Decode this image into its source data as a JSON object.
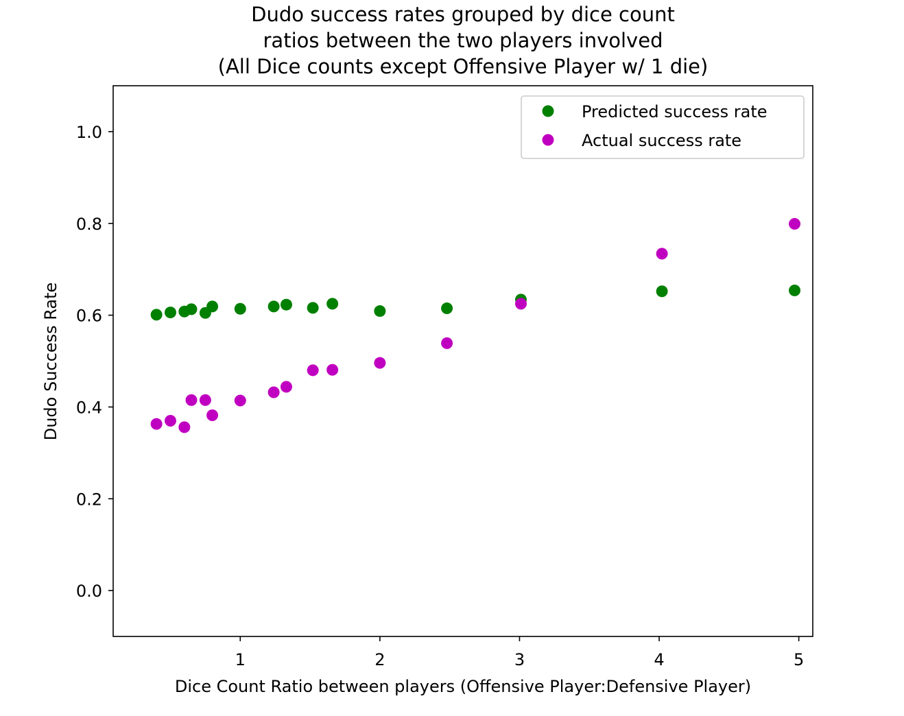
{
  "chart_data": {
    "type": "scatter",
    "title": [
      "Dudo success rates grouped by dice count",
      "ratios between the two players involved",
      "(All Dice counts except Offensive Player w/ 1 die)"
    ],
    "xlabel": "Dice Count Ratio between players (Offensive Player:Defensive Player)",
    "ylabel": "Dudo Success Rate",
    "xlim": [
      0.09,
      5.1
    ],
    "ylim": [
      -0.1,
      1.1
    ],
    "xticks": [
      1,
      2,
      3,
      4,
      5
    ],
    "xtick_labels": [
      "1",
      "2",
      "3",
      "4",
      "5"
    ],
    "yticks": [
      0.0,
      0.2,
      0.4,
      0.6,
      0.8,
      1.0
    ],
    "ytick_labels": [
      "0.0",
      "0.2",
      "0.4",
      "0.6",
      "0.8",
      "1.0"
    ],
    "grid": false,
    "legend_position": "top-right",
    "series": [
      {
        "name": "Predicted success rate",
        "color": "#008000",
        "x": [
          0.4,
          0.5,
          0.6,
          0.65,
          0.75,
          0.8,
          1.0,
          1.24,
          1.33,
          1.52,
          1.66,
          2.0,
          2.48,
          3.01,
          4.02,
          4.97
        ],
        "y": [
          0.601,
          0.606,
          0.608,
          0.613,
          0.605,
          0.619,
          0.614,
          0.619,
          0.623,
          0.616,
          0.625,
          0.609,
          0.615,
          0.634,
          0.652,
          0.654
        ]
      },
      {
        "name": "Actual success rate",
        "color": "#c000c0",
        "x": [
          0.4,
          0.5,
          0.6,
          0.65,
          0.75,
          0.8,
          1.0,
          1.24,
          1.33,
          1.52,
          1.66,
          2.0,
          2.48,
          3.01,
          4.02,
          4.97
        ],
        "y": [
          0.363,
          0.37,
          0.356,
          0.415,
          0.415,
          0.382,
          0.414,
          0.432,
          0.444,
          0.48,
          0.481,
          0.496,
          0.539,
          0.625,
          0.734,
          0.799
        ]
      }
    ]
  }
}
